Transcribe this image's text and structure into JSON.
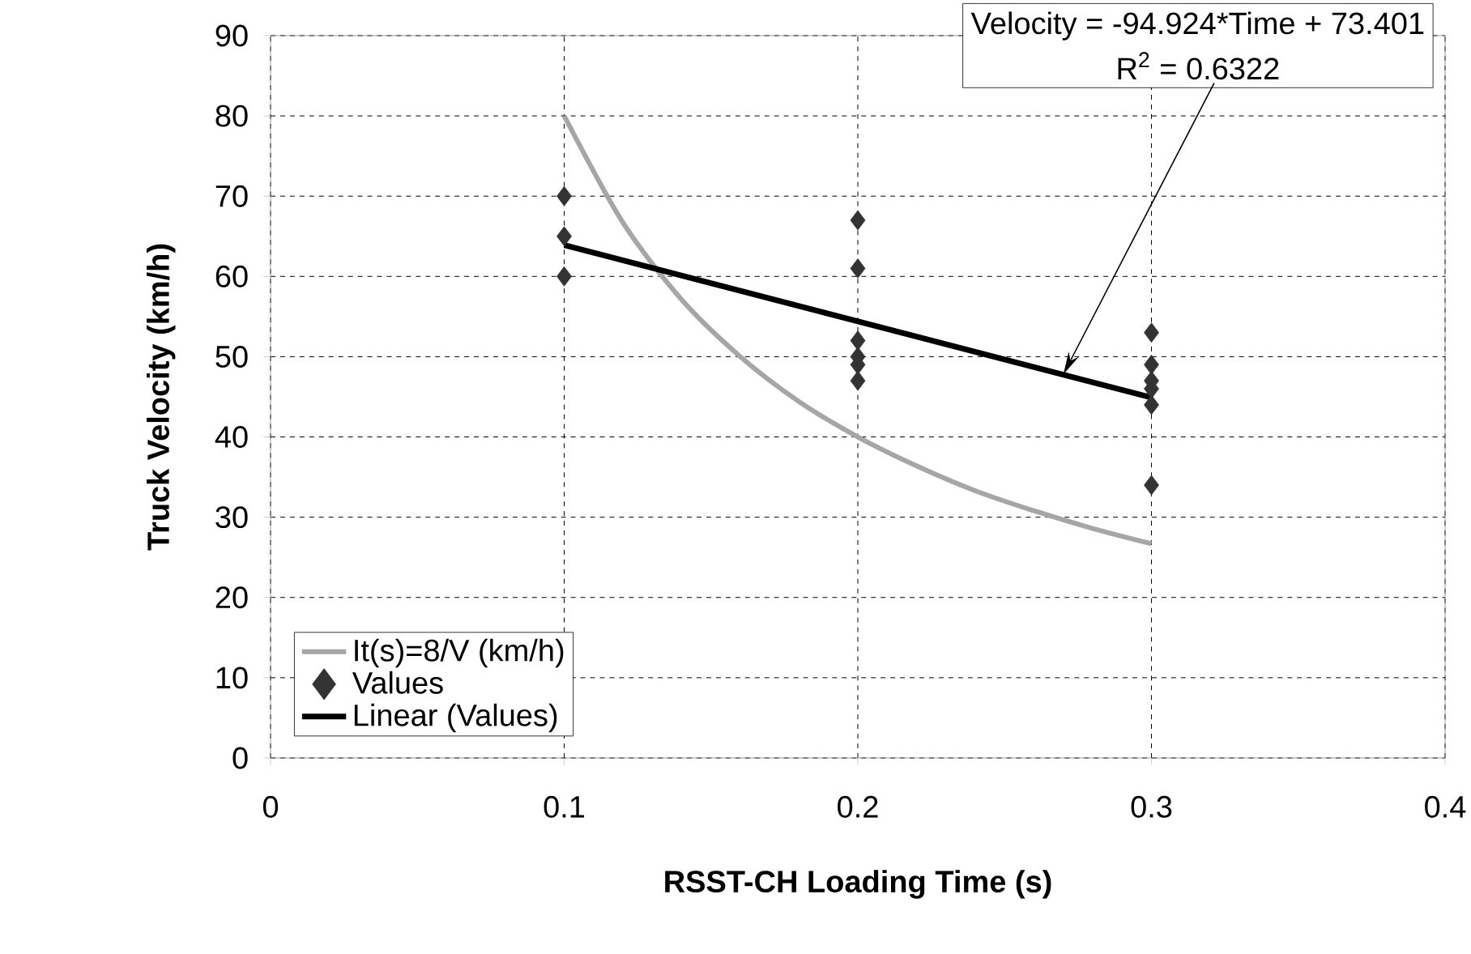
{
  "chart_data": {
    "type": "scatter",
    "xlabel": "RSST-CH Loading Time (s)",
    "ylabel": "Truck Velocity (km/h)",
    "xlim": [
      0,
      0.4
    ],
    "xticks": [
      0,
      0.1,
      0.2,
      0.3,
      0.4
    ],
    "ylim": [
      0,
      90
    ],
    "yticks": [
      0,
      10,
      20,
      30,
      40,
      50,
      60,
      70,
      80,
      90
    ],
    "grid": true,
    "legend": "bottom left",
    "series": [
      {
        "name": "It(s)=8/V (km/h)",
        "type": "line",
        "color": "#a6a6a6",
        "marker": "none",
        "x": [
          0.1,
          0.12,
          0.14,
          0.16,
          0.18,
          0.2,
          0.22,
          0.24,
          0.26,
          0.28,
          0.3
        ],
        "values": [
          80,
          66.7,
          57.1,
          50,
          44.4,
          40,
          36.4,
          33.3,
          30.8,
          28.6,
          26.7
        ]
      },
      {
        "name": "Values",
        "type": "scatter",
        "color": "#333333",
        "marker": "diamond",
        "x": [
          0.1,
          0.1,
          0.1,
          0.2,
          0.2,
          0.2,
          0.2,
          0.2,
          0.2,
          0.3,
          0.3,
          0.3,
          0.3,
          0.3,
          0.3
        ],
        "values": [
          70,
          65,
          60,
          67,
          61,
          52,
          50,
          49,
          47,
          53,
          49,
          47,
          46,
          44,
          34
        ]
      },
      {
        "name": "Linear (Values)",
        "type": "line",
        "color": "#000000",
        "marker": "none",
        "x": [
          0.1,
          0.3
        ],
        "values": [
          63.9,
          44.9
        ]
      }
    ],
    "annotations": [
      "Velocity = -94.924*Time + 73.401",
      {
        "text": "R$^{2}$ = 0.6322",
        "x": 0.27,
        "y": 47.8
      }
    ]
  }
}
